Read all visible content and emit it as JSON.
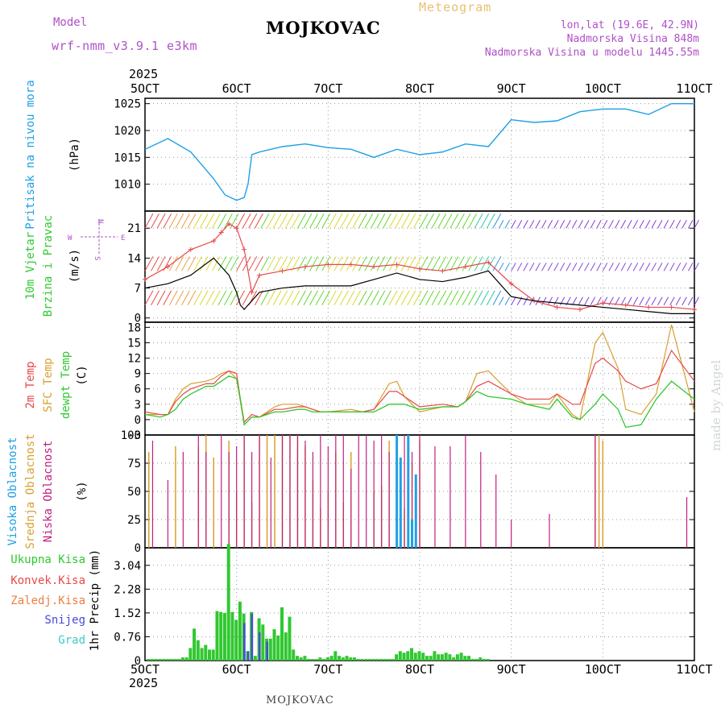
{
  "header": {
    "model_label": "Model",
    "model_name": "wrf-nmm_v3.9.1  e3km",
    "station": "MOJKOVAC",
    "product": "Meteogram",
    "lonlat": "lon,lat (19.6E, 42.9N)",
    "elevation": "Nadmorska Visina 848m",
    "model_elevation": "Nadmorska Visina u modelu 1445.55m",
    "year_top": "2025",
    "year_bottom": "2025",
    "footer_station": "MOJKOVAC",
    "watermark": "made by Angel"
  },
  "colors": {
    "pressure": "#1ea0e6",
    "wind_speed_line": "#000000",
    "wind_gust_line": "#e84848",
    "temp2m": "#e84848",
    "sfc_temp": "#d8a030",
    "dewpoint": "#30c830",
    "high_cloud": "#1ea0e6",
    "mid_cloud": "#d8a030",
    "low_cloud": "#c02080",
    "total_precip": "#30c830",
    "conv_precip": "#e84848",
    "frozen_precip": "#e88040",
    "snow": "#4848d8",
    "hail": "#40c8c8",
    "grid": "#999999"
  },
  "chart_data": [
    {
      "type": "line",
      "title": "Pritisak na nivou mora",
      "ylabel": "(hPa)",
      "x_categories": [
        "5OCT",
        "6OCT",
        "7OCT",
        "8OCT",
        "9OCT",
        "10OCT",
        "11OCT"
      ],
      "xlim": [
        0,
        144
      ],
      "ylim": [
        1005,
        1026
      ],
      "yticks": [
        1010,
        1015,
        1020,
        1025
      ],
      "series": [
        {
          "name": "MSLP",
          "x": [
            0,
            6,
            12,
            18,
            21,
            24,
            26,
            27,
            28,
            30,
            36,
            42,
            48,
            54,
            60,
            66,
            72,
            78,
            84,
            90,
            96,
            102,
            108,
            114,
            120,
            126,
            132,
            138,
            144
          ],
          "y": [
            1016.5,
            1018.5,
            1016,
            1011,
            1008,
            1007,
            1007.5,
            1010,
            1015.5,
            1016,
            1017,
            1017.5,
            1016.8,
            1016.5,
            1015,
            1016.5,
            1015.5,
            1016,
            1017.5,
            1017,
            1022,
            1021.5,
            1021.8,
            1023.5,
            1024,
            1024,
            1023,
            1025,
            1025
          ]
        }
      ]
    },
    {
      "type": "line",
      "title": "10m Vjetar Brzina i Pravac",
      "ylabel": "(m/s)",
      "ylim": [
        -1,
        25
      ],
      "yticks": [
        0,
        7,
        14,
        21
      ],
      "compass": [
        "N",
        "W",
        "E",
        "S"
      ],
      "series": [
        {
          "name": "Wind speed",
          "x": [
            0,
            6,
            12,
            18,
            20,
            22,
            24,
            25,
            26,
            30,
            36,
            42,
            48,
            54,
            60,
            66,
            72,
            78,
            84,
            90,
            96,
            102,
            108,
            114,
            120,
            126,
            132,
            138,
            144
          ],
          "y": [
            7,
            8,
            10,
            14,
            12,
            10,
            6,
            3,
            2,
            6,
            7,
            7.5,
            7.5,
            7.5,
            9,
            10.5,
            9,
            8.5,
            9.5,
            11,
            5,
            4,
            3.5,
            3,
            2.5,
            2,
            1.5,
            1,
            1
          ]
        },
        {
          "name": "Gust",
          "x": [
            0,
            6,
            12,
            18,
            20,
            22,
            24,
            26,
            28,
            30,
            36,
            42,
            48,
            54,
            60,
            66,
            72,
            78,
            84,
            90,
            96,
            102,
            108,
            114,
            120,
            126,
            132,
            138,
            144
          ],
          "y": [
            9,
            12,
            16,
            18,
            20,
            22,
            21,
            16,
            6,
            10,
            11,
            12,
            12.5,
            12.5,
            12,
            12.5,
            11.5,
            11,
            12,
            13,
            8,
            4,
            2.5,
            2,
            3.5,
            3,
            2.5,
            2.5,
            2
          ]
        }
      ],
      "barb_rows_ms": [
        3,
        11,
        21
      ]
    },
    {
      "type": "line",
      "title": "2m Temp / SFC Temp / dewpt Temp",
      "ylabel": "(C)",
      "ylim": [
        -3,
        19
      ],
      "yticks": [
        -3,
        0,
        3,
        6,
        9,
        12,
        15,
        18
      ],
      "series": [
        {
          "name": "2m Temp",
          "x": [
            0,
            4,
            6,
            8,
            10,
            12,
            16,
            18,
            20,
            22,
            24,
            25,
            26,
            28,
            30,
            34,
            36,
            40,
            42,
            44,
            46,
            48,
            54,
            57,
            60,
            64,
            66,
            68,
            72,
            78,
            82,
            84,
            87,
            90,
            96,
            100,
            106,
            108,
            112,
            114,
            118,
            120,
            124,
            126,
            130,
            134,
            138,
            144
          ],
          "y": [
            1.5,
            1,
            1,
            3.5,
            5,
            6,
            7,
            7,
            8.5,
            9.5,
            9,
            4,
            -0.5,
            1,
            0.5,
            2,
            2,
            2.5,
            2.5,
            2,
            1.5,
            1.5,
            1.5,
            1.5,
            2,
            5.5,
            5.5,
            4.5,
            2.5,
            3,
            2.5,
            3.5,
            6.5,
            7.5,
            5,
            4,
            4,
            5,
            3,
            3,
            11,
            12,
            9.5,
            7.5,
            6,
            7,
            13.5,
            7.5
          ]
        },
        {
          "name": "SFC Temp",
          "x": [
            0,
            4,
            6,
            8,
            10,
            12,
            16,
            18,
            20,
            22,
            24,
            25,
            26,
            28,
            30,
            34,
            36,
            40,
            42,
            44,
            46,
            48,
            54,
            57,
            60,
            64,
            66,
            68,
            72,
            78,
            82,
            84,
            87,
            90,
            96,
            100,
            106,
            108,
            112,
            114,
            118,
            120,
            124,
            126,
            130,
            134,
            138,
            144
          ],
          "y": [
            1,
            1,
            1,
            4,
            6,
            7,
            7.5,
            8,
            9,
            9.5,
            8,
            3.5,
            -1,
            0.5,
            0.5,
            2.5,
            3,
            3,
            2.5,
            2,
            1.5,
            1.5,
            2,
            1.5,
            2,
            7,
            7.5,
            4.5,
            1.5,
            2.5,
            2.5,
            3.5,
            9,
            9.5,
            5,
            3,
            3,
            5,
            1,
            0,
            15,
            17,
            10,
            2,
            1,
            5,
            18.5,
            1.5
          ]
        },
        {
          "name": "dewpt Temp",
          "x": [
            0,
            4,
            6,
            8,
            10,
            12,
            16,
            18,
            20,
            22,
            24,
            25,
            26,
            28,
            30,
            34,
            36,
            40,
            42,
            44,
            46,
            48,
            54,
            57,
            60,
            64,
            66,
            68,
            72,
            78,
            82,
            84,
            87,
            90,
            96,
            100,
            106,
            108,
            112,
            114,
            118,
            120,
            124,
            126,
            130,
            134,
            138,
            144
          ],
          "y": [
            1,
            0.5,
            1,
            2,
            4,
            5,
            6.5,
            6.5,
            7.5,
            8.5,
            8,
            4,
            -1,
            0.5,
            0.5,
            1.5,
            1.5,
            2,
            2,
            1.5,
            1.5,
            1.5,
            1.5,
            1.5,
            1.5,
            3,
            3,
            3,
            2,
            2.5,
            2.5,
            3.5,
            5.5,
            4.5,
            4,
            3,
            2,
            4,
            0.5,
            0,
            3,
            5,
            2,
            -1.5,
            -1,
            4,
            7.5,
            4
          ]
        }
      ]
    },
    {
      "type": "bar",
      "title": "Visoka / Srednja / Niska Oblacnost",
      "ylabel": "(%)",
      "ylim": [
        0,
        100
      ],
      "yticks": [
        0,
        25,
        50,
        75,
        100
      ],
      "series": [
        {
          "name": "Visoka Oblacnost",
          "x": [
            66,
            67,
            68,
            69,
            70,
            71,
            72,
            73,
            74
          ],
          "y": [
            100,
            80,
            0,
            100,
            25,
            65,
            0,
            0,
            0
          ]
        },
        {
          "name": "Srednja Oblacnost",
          "x": [
            1,
            8,
            14,
            16,
            18,
            22,
            24,
            26,
            28,
            30,
            32,
            34,
            36,
            38,
            40,
            42,
            44,
            46,
            48,
            50,
            52,
            54,
            60,
            62,
            64,
            66,
            68,
            70,
            72,
            118,
            119,
            120
          ],
          "y": [
            85,
            90,
            90,
            100,
            80,
            95,
            50,
            100,
            40,
            100,
            100,
            100,
            100,
            100,
            100,
            90,
            60,
            35,
            50,
            85,
            40,
            85,
            50,
            55,
            95,
            60,
            35,
            75,
            95,
            100,
            100,
            95
          ]
        },
        {
          "name": "Niska Oblacnost",
          "x": [
            2,
            6,
            10,
            14,
            16,
            20,
            22,
            24,
            26,
            28,
            30,
            33,
            36,
            38,
            40,
            42,
            44,
            46,
            48,
            50,
            52,
            54,
            56,
            58,
            60,
            62,
            64,
            66,
            68,
            70,
            72,
            76,
            80,
            84,
            88,
            92,
            96,
            106,
            118,
            142
          ],
          "y": [
            95,
            60,
            85,
            100,
            85,
            100,
            85,
            90,
            100,
            85,
            100,
            80,
            100,
            100,
            100,
            95,
            85,
            100,
            90,
            100,
            100,
            70,
            100,
            100,
            95,
            100,
            85,
            90,
            100,
            85,
            100,
            90,
            90,
            100,
            85,
            65,
            25,
            30,
            100,
            45
          ]
        }
      ]
    },
    {
      "type": "bar",
      "title": "1hr Precip",
      "ylabel": "1hr Precip (mm)",
      "ylim": [
        0,
        3.6
      ],
      "yticks": [
        0,
        0.76,
        1.52,
        2.28,
        3.04
      ],
      "legend": [
        "Ukupna Kisa",
        "Konvek.Kisa",
        "Zaledj.Kisa",
        "Snijeg",
        "Grad"
      ],
      "series": [
        {
          "name": "Ukupna Kisa",
          "x": [
            1,
            2,
            3,
            4,
            5,
            6,
            7,
            8,
            9,
            10,
            11,
            12,
            13,
            14,
            15,
            16,
            17,
            18,
            19,
            20,
            21,
            22,
            23,
            24,
            25,
            26,
            27,
            28,
            29,
            30,
            31,
            32,
            33,
            34,
            35,
            36,
            37,
            38,
            39,
            40,
            41,
            42,
            43,
            44,
            45,
            46,
            47,
            48,
            49,
            50,
            51,
            52,
            53,
            54,
            55,
            56,
            57,
            58,
            59,
            60,
            61,
            62,
            63,
            64,
            65,
            66,
            67,
            68,
            69,
            70,
            71,
            72,
            73,
            74,
            75,
            76,
            77,
            78,
            79,
            80,
            81,
            82,
            83,
            84,
            85,
            86,
            87,
            88,
            89,
            90
          ],
          "y": [
            0.05,
            0.05,
            0.05,
            0.05,
            0.05,
            0.05,
            0.05,
            0.05,
            0.05,
            0.1,
            0.1,
            0.4,
            1.02,
            0.65,
            0.4,
            0.5,
            0.35,
            0.35,
            1.58,
            1.55,
            1.52,
            3.72,
            1.55,
            1.3,
            1.88,
            1.5,
            0.3,
            1.55,
            0.15,
            1.35,
            1.15,
            0.7,
            0.7,
            1.0,
            0.8,
            1.7,
            0.9,
            1.4,
            0.35,
            0.15,
            0.1,
            0.15,
            0.05,
            0.05,
            0.05,
            0.1,
            0.05,
            0.1,
            0.15,
            0.3,
            0.15,
            0.1,
            0.15,
            0.1,
            0.1,
            0.05,
            0.05,
            0.05,
            0.05,
            0.05,
            0.05,
            0.05,
            0.05,
            0.05,
            0.05,
            0.2,
            0.3,
            0.25,
            0.3,
            0.4,
            0.25,
            0.3,
            0.25,
            0.15,
            0.15,
            0.3,
            0.2,
            0.2,
            0.25,
            0.2,
            0.1,
            0.2,
            0.25,
            0.15,
            0.15,
            0.05,
            0.05,
            0.1,
            0.05,
            0.05
          ]
        },
        {
          "name": "Snijeg",
          "x": [
            26,
            27,
            28,
            30,
            32
          ],
          "y": [
            1.2,
            0.3,
            1.5,
            0.9,
            0.6
          ]
        }
      ]
    }
  ],
  "panels": {
    "pressure": {
      "label": "Pritisak na nivou mora",
      "unit": "(hPa)"
    },
    "wind": {
      "label1": "10m Vjetar",
      "label2": "Brzina i Pravac",
      "unit": "(m/s)"
    },
    "temp": {
      "label1": "2m Temp",
      "label2": "SFC Temp",
      "label3": "dewpt Temp",
      "unit": "(C)"
    },
    "cloud": {
      "label1": "Visoka Oblacnost",
      "label2": "Srednja Oblacnost",
      "label3": "Niska Oblacnost",
      "unit": "(%)"
    },
    "precip": {
      "unit": "1hr Precip (mm)",
      "legend": [
        "Ukupna Kisa",
        "Konvek.Kisa",
        "Zaledj.Kisa",
        "Snijeg",
        "Grad"
      ]
    }
  }
}
